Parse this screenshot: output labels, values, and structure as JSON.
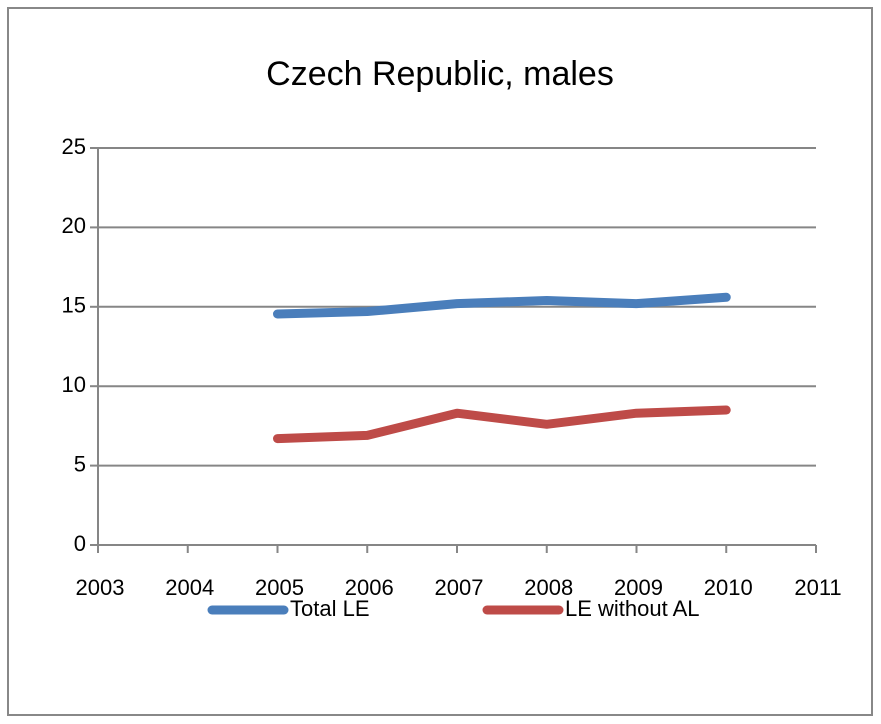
{
  "chart_data": {
    "type": "line",
    "title": "Czech Republic, males",
    "x": [
      2005,
      2006,
      2007,
      2008,
      2009,
      2010
    ],
    "series": [
      {
        "name": "Total LE",
        "color": "#4a7ebb",
        "values": [
          14.55,
          14.7,
          15.2,
          15.4,
          15.2,
          15.6
        ]
      },
      {
        "name": "LE without AL",
        "color": "#be4b48",
        "values": [
          6.7,
          6.9,
          8.3,
          7.6,
          8.3,
          8.5
        ]
      }
    ],
    "xlim": [
      2003,
      2011
    ],
    "xticks": [
      2003,
      2004,
      2005,
      2006,
      2007,
      2008,
      2009,
      2010,
      2011
    ],
    "ylim": [
      0,
      25
    ],
    "yticks": [
      0,
      5,
      10,
      15,
      20,
      25
    ],
    "grid": true,
    "legend": "bottom"
  }
}
